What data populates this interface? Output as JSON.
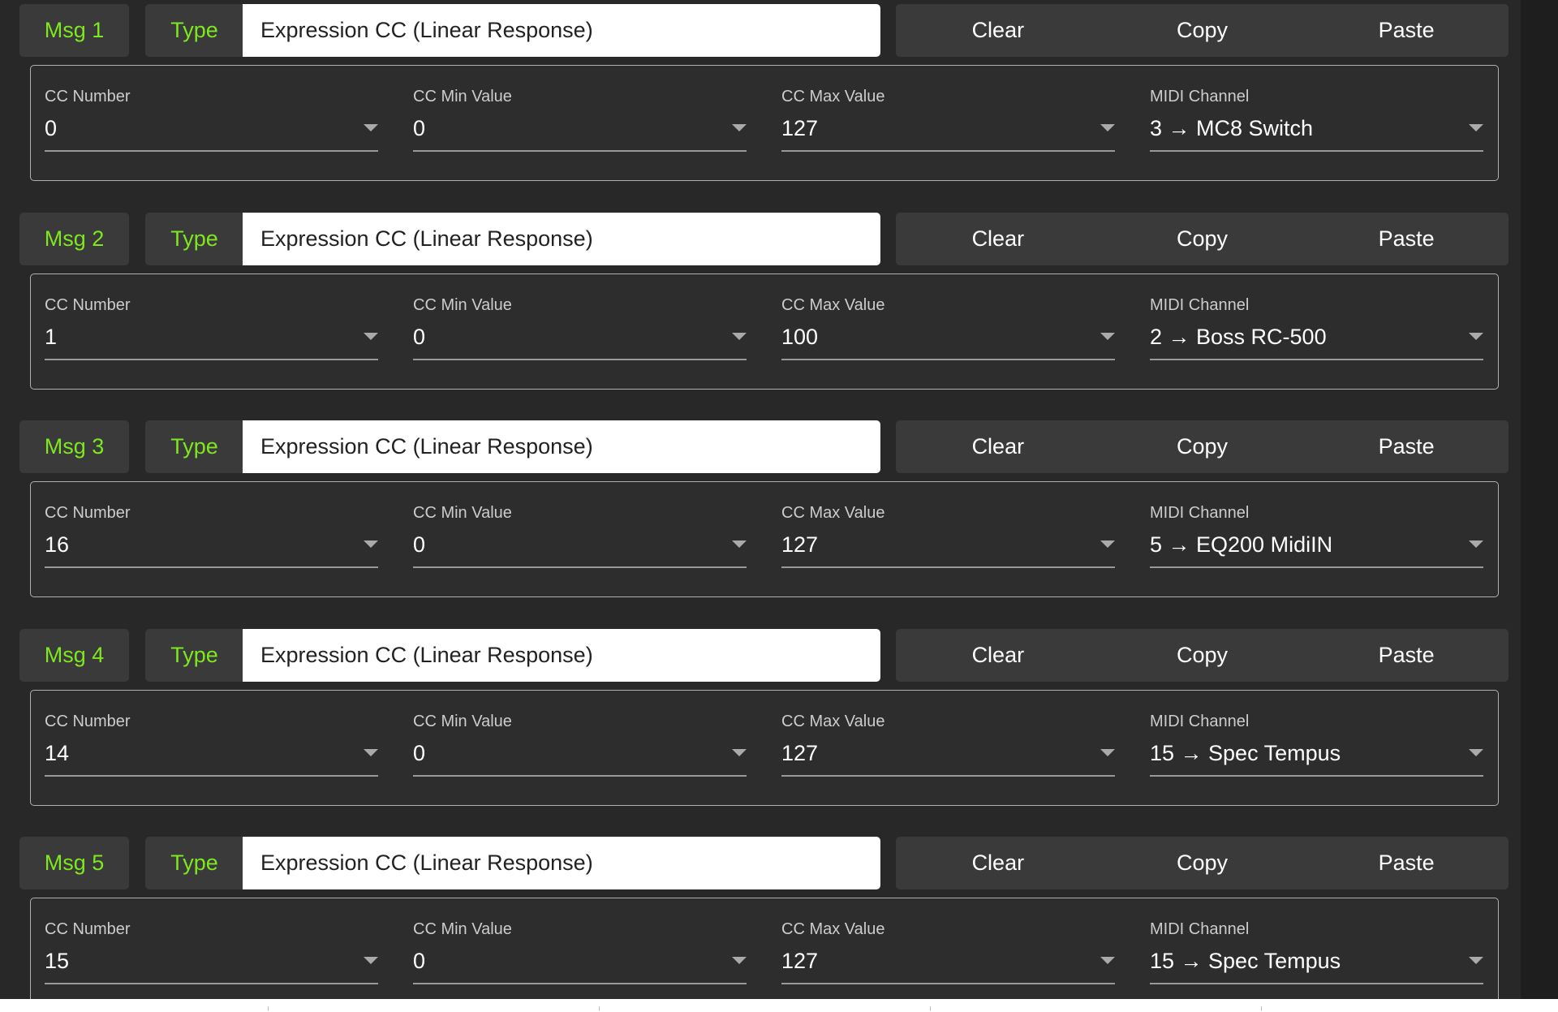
{
  "type_label": "Type",
  "buttons": {
    "clear": "Clear",
    "copy": "Copy",
    "paste": "Paste"
  },
  "field_labels": {
    "cc_number": "CC Number",
    "cc_min": "CC Min Value",
    "cc_max": "CC Max Value",
    "midi_channel": "MIDI Channel"
  },
  "accent_color": "#7ee81e",
  "messages": [
    {
      "label": "Msg 1",
      "type": "Expression CC (Linear Response)",
      "cc_number": "0",
      "cc_min": "0",
      "cc_max": "127",
      "midi_channel": "3 → MC8 Switch"
    },
    {
      "label": "Msg 2",
      "type": "Expression CC (Linear Response)",
      "cc_number": "1",
      "cc_min": "0",
      "cc_max": "100",
      "midi_channel": "2 → Boss RC-500"
    },
    {
      "label": "Msg 3",
      "type": "Expression CC (Linear Response)",
      "cc_number": "16",
      "cc_min": "0",
      "cc_max": "127",
      "midi_channel": "5 → EQ200 MidiIN"
    },
    {
      "label": "Msg 4",
      "type": "Expression CC (Linear Response)",
      "cc_number": "14",
      "cc_min": "0",
      "cc_max": "127",
      "midi_channel": "15 → Spec Tempus"
    },
    {
      "label": "Msg 5",
      "type": "Expression CC (Linear Response)",
      "cc_number": "15",
      "cc_min": "0",
      "cc_max": "127",
      "midi_channel": "15 → Spec Tempus"
    }
  ]
}
